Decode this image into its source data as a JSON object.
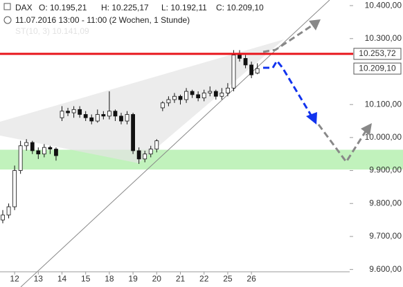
{
  "header": {
    "symbol": "DAX",
    "ohlc": [
      "O: 10.195,21",
      "H: 10.225,17",
      "L: 10.192,11",
      "C: 10.209,10"
    ],
    "period": "11.07.2016 13:00 - 11:00 (2 Wochen, 1 Stunde)",
    "indicator": "ST(10, 3)  10.141,09"
  },
  "chart_data": {
    "type": "candlestick",
    "categories": [
      null,
      null,
      "12",
      null,
      null,
      null,
      "13",
      null,
      null,
      null,
      "14",
      null,
      null,
      null,
      "15",
      null,
      null,
      null,
      "18",
      null,
      null,
      null,
      "19",
      null,
      null,
      null,
      "20",
      null,
      null,
      null,
      "21",
      null,
      null,
      null,
      "22",
      null,
      null,
      null,
      "25",
      null,
      null,
      null,
      "26",
      null
    ],
    "open": [
      9750,
      9765,
      9790,
      9900,
      9975,
      9985,
      9960,
      9950,
      9970,
      9965,
      10060,
      10080,
      10075,
      10085,
      10070,
      10060,
      10050,
      10070,
      10065,
      10080,
      10065,
      10050,
      10070,
      9960,
      9935,
      9950,
      9965,
      10090,
      10105,
      10115,
      10125,
      10115,
      10140,
      10130,
      10120,
      10135,
      10140,
      10125,
      10135,
      10150,
      10250,
      10240,
      10220,
      10195.21
    ],
    "high": [
      9780,
      9800,
      9915,
      9990,
      9995,
      9990,
      9970,
      9980,
      9975,
      9970,
      10095,
      10090,
      10095,
      10095,
      10080,
      10070,
      10085,
      10080,
      10140,
      10085,
      10075,
      10080,
      10075,
      9970,
      9960,
      9975,
      9995,
      10110,
      10125,
      10135,
      10130,
      10150,
      10145,
      10140,
      10145,
      10155,
      10145,
      10150,
      10165,
      10265,
      10265,
      10250,
      10230,
      10225.17
    ],
    "low": [
      9740,
      9755,
      9780,
      9890,
      9960,
      9950,
      9935,
      9940,
      9950,
      9930,
      10050,
      10065,
      10060,
      10060,
      10050,
      10040,
      10045,
      10055,
      10055,
      10050,
      10040,
      10040,
      9950,
      9920,
      9925,
      9940,
      9955,
      10080,
      10095,
      10105,
      10100,
      10105,
      10120,
      10110,
      10110,
      10125,
      10115,
      10115,
      10125,
      10140,
      10230,
      10210,
      10180,
      10192.11
    ],
    "close": [
      9765,
      9790,
      9900,
      9975,
      9985,
      9960,
      9950,
      9970,
      9965,
      9945,
      10080,
      10075,
      10085,
      10070,
      10060,
      10050,
      10070,
      10065,
      10080,
      10065,
      10050,
      10070,
      9960,
      9935,
      9950,
      9965,
      9990,
      10105,
      10115,
      10125,
      10115,
      10140,
      10130,
      10120,
      10135,
      10140,
      10125,
      10135,
      10150,
      10250,
      10240,
      10220,
      10190,
      10209.1
    ],
    "ylim": [
      9595,
      10417
    ],
    "yticks": [
      {
        "value": 9600,
        "label": "9.600,00"
      },
      {
        "value": 9700,
        "label": "9.700,00"
      },
      {
        "value": 9800,
        "label": "9.800,00"
      },
      {
        "value": 9900,
        "label": "9.900,00"
      },
      {
        "value": 10000,
        "label": "10.000,00"
      },
      {
        "value": 10100,
        "label": "10.100,00"
      },
      {
        "value": 10300,
        "label": "10.300,00"
      },
      {
        "value": 10400,
        "label": "10.400,00"
      }
    ],
    "resistance": {
      "value": 10253.72,
      "label": "10.253,72",
      "color": "#e8141b"
    },
    "last_price": {
      "value": 10209.1,
      "label": "10.209,10"
    },
    "support_zone": {
      "values": [
        9903,
        9963
      ],
      "color": "#b6f0b0"
    },
    "up_color": "#ffffff",
    "down_color": "#111111"
  }
}
